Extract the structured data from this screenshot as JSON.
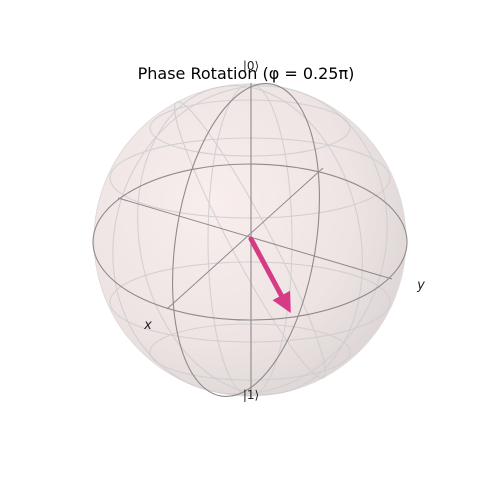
{
  "figure": {
    "title": "Phase Rotation (φ = 0.25π)"
  },
  "bloch": {
    "pole_top_label": "|0⟩",
    "pole_bottom_label": "|1⟩",
    "axis_x_label": "x",
    "axis_y_label": "y",
    "state_vector": {
      "phi_over_pi": 0.25,
      "color": "#d63c86"
    },
    "sphere_fill_color": "#f2e6e6",
    "wire_color": "#8a8a8a",
    "grid_color": "#cfcfcf"
  }
}
